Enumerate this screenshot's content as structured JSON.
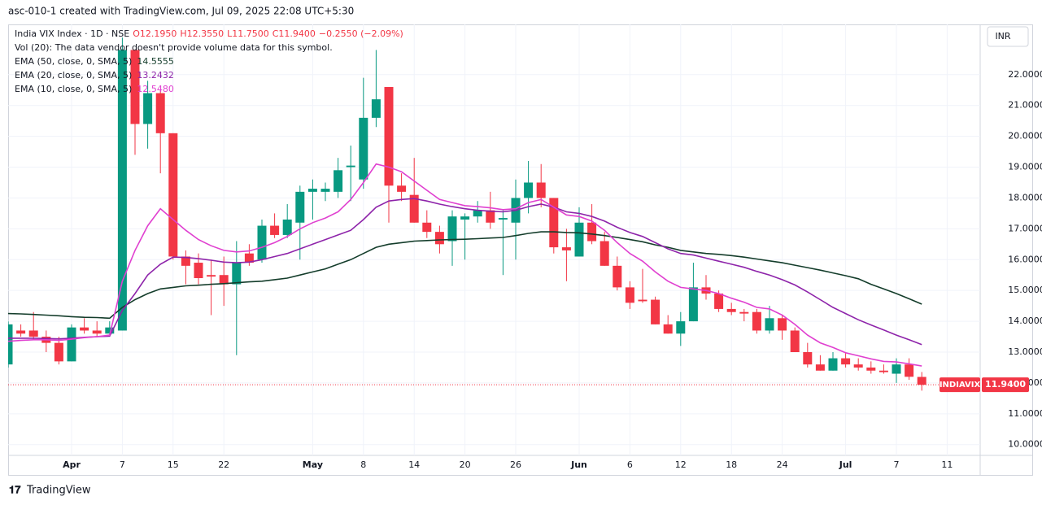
{
  "header": "asc-010-1 created with TradingView.com, Jul 09, 2025 22:08 UTC+5:30",
  "footer": "TradingView",
  "chart_data": {
    "type": "candlestick",
    "legend": {
      "symbol": "India VIX Index · 1D · NSE",
      "open": "O12.1950",
      "high": "H12.3550",
      "low": "L11.7500",
      "close": "C11.9400",
      "change": "−0.2550 (−2.09%)",
      "volume_note": "Vol (20): The data vendor doesn't provide volume data for this symbol."
    },
    "currency": "INR",
    "last_price": {
      "name": "INDIAVIX",
      "value": 11.94,
      "label": "11.9400",
      "color": "#f23645"
    },
    "categories": [
      null,
      null,
      null,
      null,
      null,
      "Apr",
      null,
      null,
      null,
      "7",
      null,
      null,
      null,
      "15",
      null,
      null,
      null,
      "22",
      null,
      null,
      null,
      null,
      null,
      null,
      "May",
      null,
      null,
      null,
      "8",
      null,
      null,
      null,
      "14",
      null,
      null,
      null,
      "20",
      null,
      null,
      null,
      "26",
      null,
      null,
      null,
      null,
      "Jun",
      null,
      null,
      null,
      "6",
      null,
      null,
      null,
      "12",
      null,
      null,
      null,
      "18",
      null,
      null,
      null,
      "24",
      null,
      null,
      null,
      null,
      "Jul",
      null,
      null,
      null,
      "7",
      null,
      null,
      null,
      "11"
    ],
    "candles": {
      "up_color": "#089981",
      "down_color": "#f23645",
      "open": [
        12.6,
        13.7,
        13.7,
        13.5,
        13.3,
        12.7,
        13.8,
        13.7,
        13.6,
        13.7,
        22.8,
        20.4,
        21.4,
        20.1,
        16.1,
        15.9,
        15.5,
        15.5,
        15.2,
        16.2,
        16.0,
        17.1,
        16.8,
        17.2,
        18.2,
        18.2,
        18.2,
        19.0,
        18.6,
        20.6,
        21.6,
        18.4,
        18.1,
        17.2,
        16.9,
        16.6,
        17.3,
        17.4,
        17.6,
        17.3,
        17.2,
        18.0,
        18.5,
        18.0,
        16.4,
        16.1,
        17.2,
        16.6,
        15.8,
        15.1,
        14.7,
        14.7,
        13.9,
        13.6,
        14.0,
        15.1,
        14.9,
        14.4,
        14.3,
        14.3,
        13.7,
        14.1,
        13.7,
        13.0,
        12.6,
        12.4,
        12.8,
        12.6,
        12.5,
        12.4,
        12.3,
        12.6,
        12.195,
        null,
        null
      ],
      "high": [
        14.0,
        13.9,
        14.3,
        13.7,
        13.5,
        13.9,
        14.1,
        14.0,
        14.0,
        23.2,
        22.8,
        21.8,
        21.5,
        20.1,
        16.3,
        16.2,
        16.0,
        16.1,
        16.6,
        16.5,
        17.3,
        17.5,
        17.8,
        18.4,
        18.6,
        18.5,
        19.3,
        19.7,
        21.9,
        22.8,
        21.6,
        18.8,
        19.3,
        17.6,
        17.1,
        17.6,
        17.5,
        17.9,
        18.2,
        17.6,
        18.6,
        19.2,
        19.1,
        18.0,
        17.0,
        17.7,
        17.8,
        16.9,
        16.1,
        15.3,
        15.7,
        14.8,
        14.2,
        14.3,
        15.9,
        15.5,
        15.0,
        14.6,
        14.4,
        14.4,
        14.5,
        14.2,
        13.8,
        13.3,
        12.9,
        13.0,
        13.0,
        12.8,
        12.7,
        12.6,
        12.8,
        12.8,
        12.355,
        null,
        null
      ],
      "low": [
        12.5,
        13.5,
        13.4,
        13.0,
        12.6,
        12.7,
        13.6,
        13.5,
        13.5,
        13.7,
        19.4,
        19.6,
        18.8,
        16.0,
        15.2,
        15.2,
        14.2,
        14.5,
        12.9,
        15.8,
        15.9,
        16.7,
        16.7,
        16.0,
        17.3,
        17.9,
        18.0,
        17.9,
        18.3,
        20.3,
        17.2,
        17.9,
        17.2,
        16.7,
        16.2,
        15.8,
        16.0,
        17.2,
        17.0,
        15.5,
        16.0,
        17.5,
        17.7,
        16.2,
        15.3,
        16.1,
        16.5,
        15.8,
        15.0,
        14.4,
        14.6,
        13.9,
        13.6,
        13.2,
        14.0,
        14.7,
        14.3,
        14.2,
        14.0,
        13.6,
        13.6,
        13.4,
        13.0,
        12.5,
        12.4,
        12.4,
        12.5,
        12.4,
        12.3,
        12.3,
        12.0,
        12.1,
        11.75,
        null,
        null
      ],
      "close": [
        13.9,
        13.6,
        13.5,
        13.3,
        12.7,
        13.8,
        13.7,
        13.6,
        13.8,
        22.8,
        20.4,
        21.4,
        20.1,
        16.1,
        15.8,
        15.4,
        15.45,
        15.2,
        15.9,
        15.9,
        17.1,
        16.8,
        17.3,
        18.2,
        18.3,
        18.3,
        18.9,
        19.05,
        20.6,
        21.2,
        18.4,
        18.2,
        17.2,
        16.9,
        16.5,
        17.4,
        17.4,
        17.6,
        17.2,
        17.35,
        18.0,
        18.5,
        18.0,
        16.4,
        16.3,
        17.2,
        16.6,
        15.8,
        15.1,
        14.6,
        14.65,
        13.9,
        13.6,
        14.0,
        15.1,
        14.9,
        14.4,
        14.3,
        14.25,
        13.7,
        14.1,
        13.7,
        13.0,
        12.6,
        12.4,
        12.8,
        12.6,
        12.5,
        12.4,
        12.35,
        12.6,
        12.2,
        11.94,
        null,
        null
      ]
    },
    "series": [
      {
        "name": "EMA (50, close, 0, SMA, 5)",
        "color": "#143d2b",
        "last_label": "14.5555",
        "values": [
          14.25,
          14.24,
          14.22,
          14.2,
          14.18,
          14.15,
          14.13,
          14.12,
          14.1,
          14.45,
          14.7,
          14.9,
          15.05,
          15.1,
          15.15,
          15.17,
          15.2,
          15.22,
          15.25,
          15.28,
          15.3,
          15.35,
          15.4,
          15.5,
          15.6,
          15.7,
          15.85,
          16.0,
          16.2,
          16.4,
          16.5,
          16.55,
          16.6,
          16.62,
          16.64,
          16.65,
          16.66,
          16.68,
          16.7,
          16.72,
          16.78,
          16.85,
          16.9,
          16.9,
          16.88,
          16.87,
          16.83,
          16.78,
          16.72,
          16.65,
          16.58,
          16.48,
          16.4,
          16.3,
          16.25,
          16.2,
          16.17,
          16.13,
          16.08,
          16.02,
          15.96,
          15.9,
          15.82,
          15.74,
          15.66,
          15.57,
          15.48,
          15.38,
          15.2,
          15.05,
          14.9,
          14.73,
          14.5555,
          null,
          null
        ]
      },
      {
        "name": "EMA (20, close, 0, SMA, 5)",
        "color": "#8e24aa",
        "last_label": "13.2432",
        "values": [
          13.45,
          13.45,
          13.45,
          13.44,
          13.43,
          13.45,
          13.48,
          13.5,
          13.52,
          14.35,
          14.9,
          15.5,
          15.85,
          16.08,
          16.07,
          16.03,
          15.98,
          15.92,
          15.9,
          15.92,
          16.0,
          16.1,
          16.2,
          16.35,
          16.5,
          16.65,
          16.8,
          16.95,
          17.3,
          17.7,
          17.9,
          17.95,
          17.98,
          17.9,
          17.8,
          17.72,
          17.65,
          17.6,
          17.57,
          17.55,
          17.6,
          17.72,
          17.8,
          17.7,
          17.55,
          17.5,
          17.4,
          17.25,
          17.05,
          16.88,
          16.75,
          16.55,
          16.35,
          16.2,
          16.15,
          16.05,
          15.95,
          15.85,
          15.75,
          15.62,
          15.5,
          15.35,
          15.18,
          14.95,
          14.7,
          14.45,
          14.25,
          14.05,
          13.88,
          13.72,
          13.55,
          13.4,
          13.2432,
          null,
          null
        ]
      },
      {
        "name": "EMA (10, close, 0, SMA, 5)",
        "color": "#e040d0",
        "last_label": "12.5480",
        "values": [
          13.35,
          13.38,
          13.4,
          13.4,
          13.38,
          13.42,
          13.47,
          13.5,
          13.55,
          15.3,
          16.3,
          17.1,
          17.65,
          17.3,
          16.95,
          16.65,
          16.45,
          16.3,
          16.25,
          16.28,
          16.4,
          16.55,
          16.75,
          17.0,
          17.2,
          17.35,
          17.55,
          17.95,
          18.5,
          19.1,
          19.0,
          18.85,
          18.55,
          18.25,
          17.95,
          17.85,
          17.75,
          17.72,
          17.68,
          17.62,
          17.65,
          17.85,
          17.95,
          17.7,
          17.45,
          17.4,
          17.25,
          16.95,
          16.55,
          16.2,
          15.95,
          15.6,
          15.3,
          15.1,
          15.05,
          15.0,
          14.9,
          14.75,
          14.62,
          14.45,
          14.4,
          14.2,
          13.9,
          13.55,
          13.3,
          13.15,
          12.98,
          12.88,
          12.78,
          12.7,
          12.68,
          12.62,
          12.548,
          null,
          null
        ]
      }
    ],
    "ylim": [
      9.65,
      23.63
    ],
    "yticks": [
      {
        "value": 10,
        "label": "10.0000"
      },
      {
        "value": 11,
        "label": "11.0000"
      },
      {
        "value": 12,
        "label": "12.0000"
      },
      {
        "value": 13,
        "label": "13.0000"
      },
      {
        "value": 14,
        "label": "14.0000"
      },
      {
        "value": 15,
        "label": "15.0000"
      },
      {
        "value": 16,
        "label": "16.0000"
      },
      {
        "value": 17,
        "label": "17.0000"
      },
      {
        "value": 18,
        "label": "18.0000"
      },
      {
        "value": 19,
        "label": "19.0000"
      },
      {
        "value": 20,
        "label": "20.0000"
      },
      {
        "value": 21,
        "label": "21.0000"
      },
      {
        "value": 22,
        "label": "22.0000"
      }
    ]
  }
}
